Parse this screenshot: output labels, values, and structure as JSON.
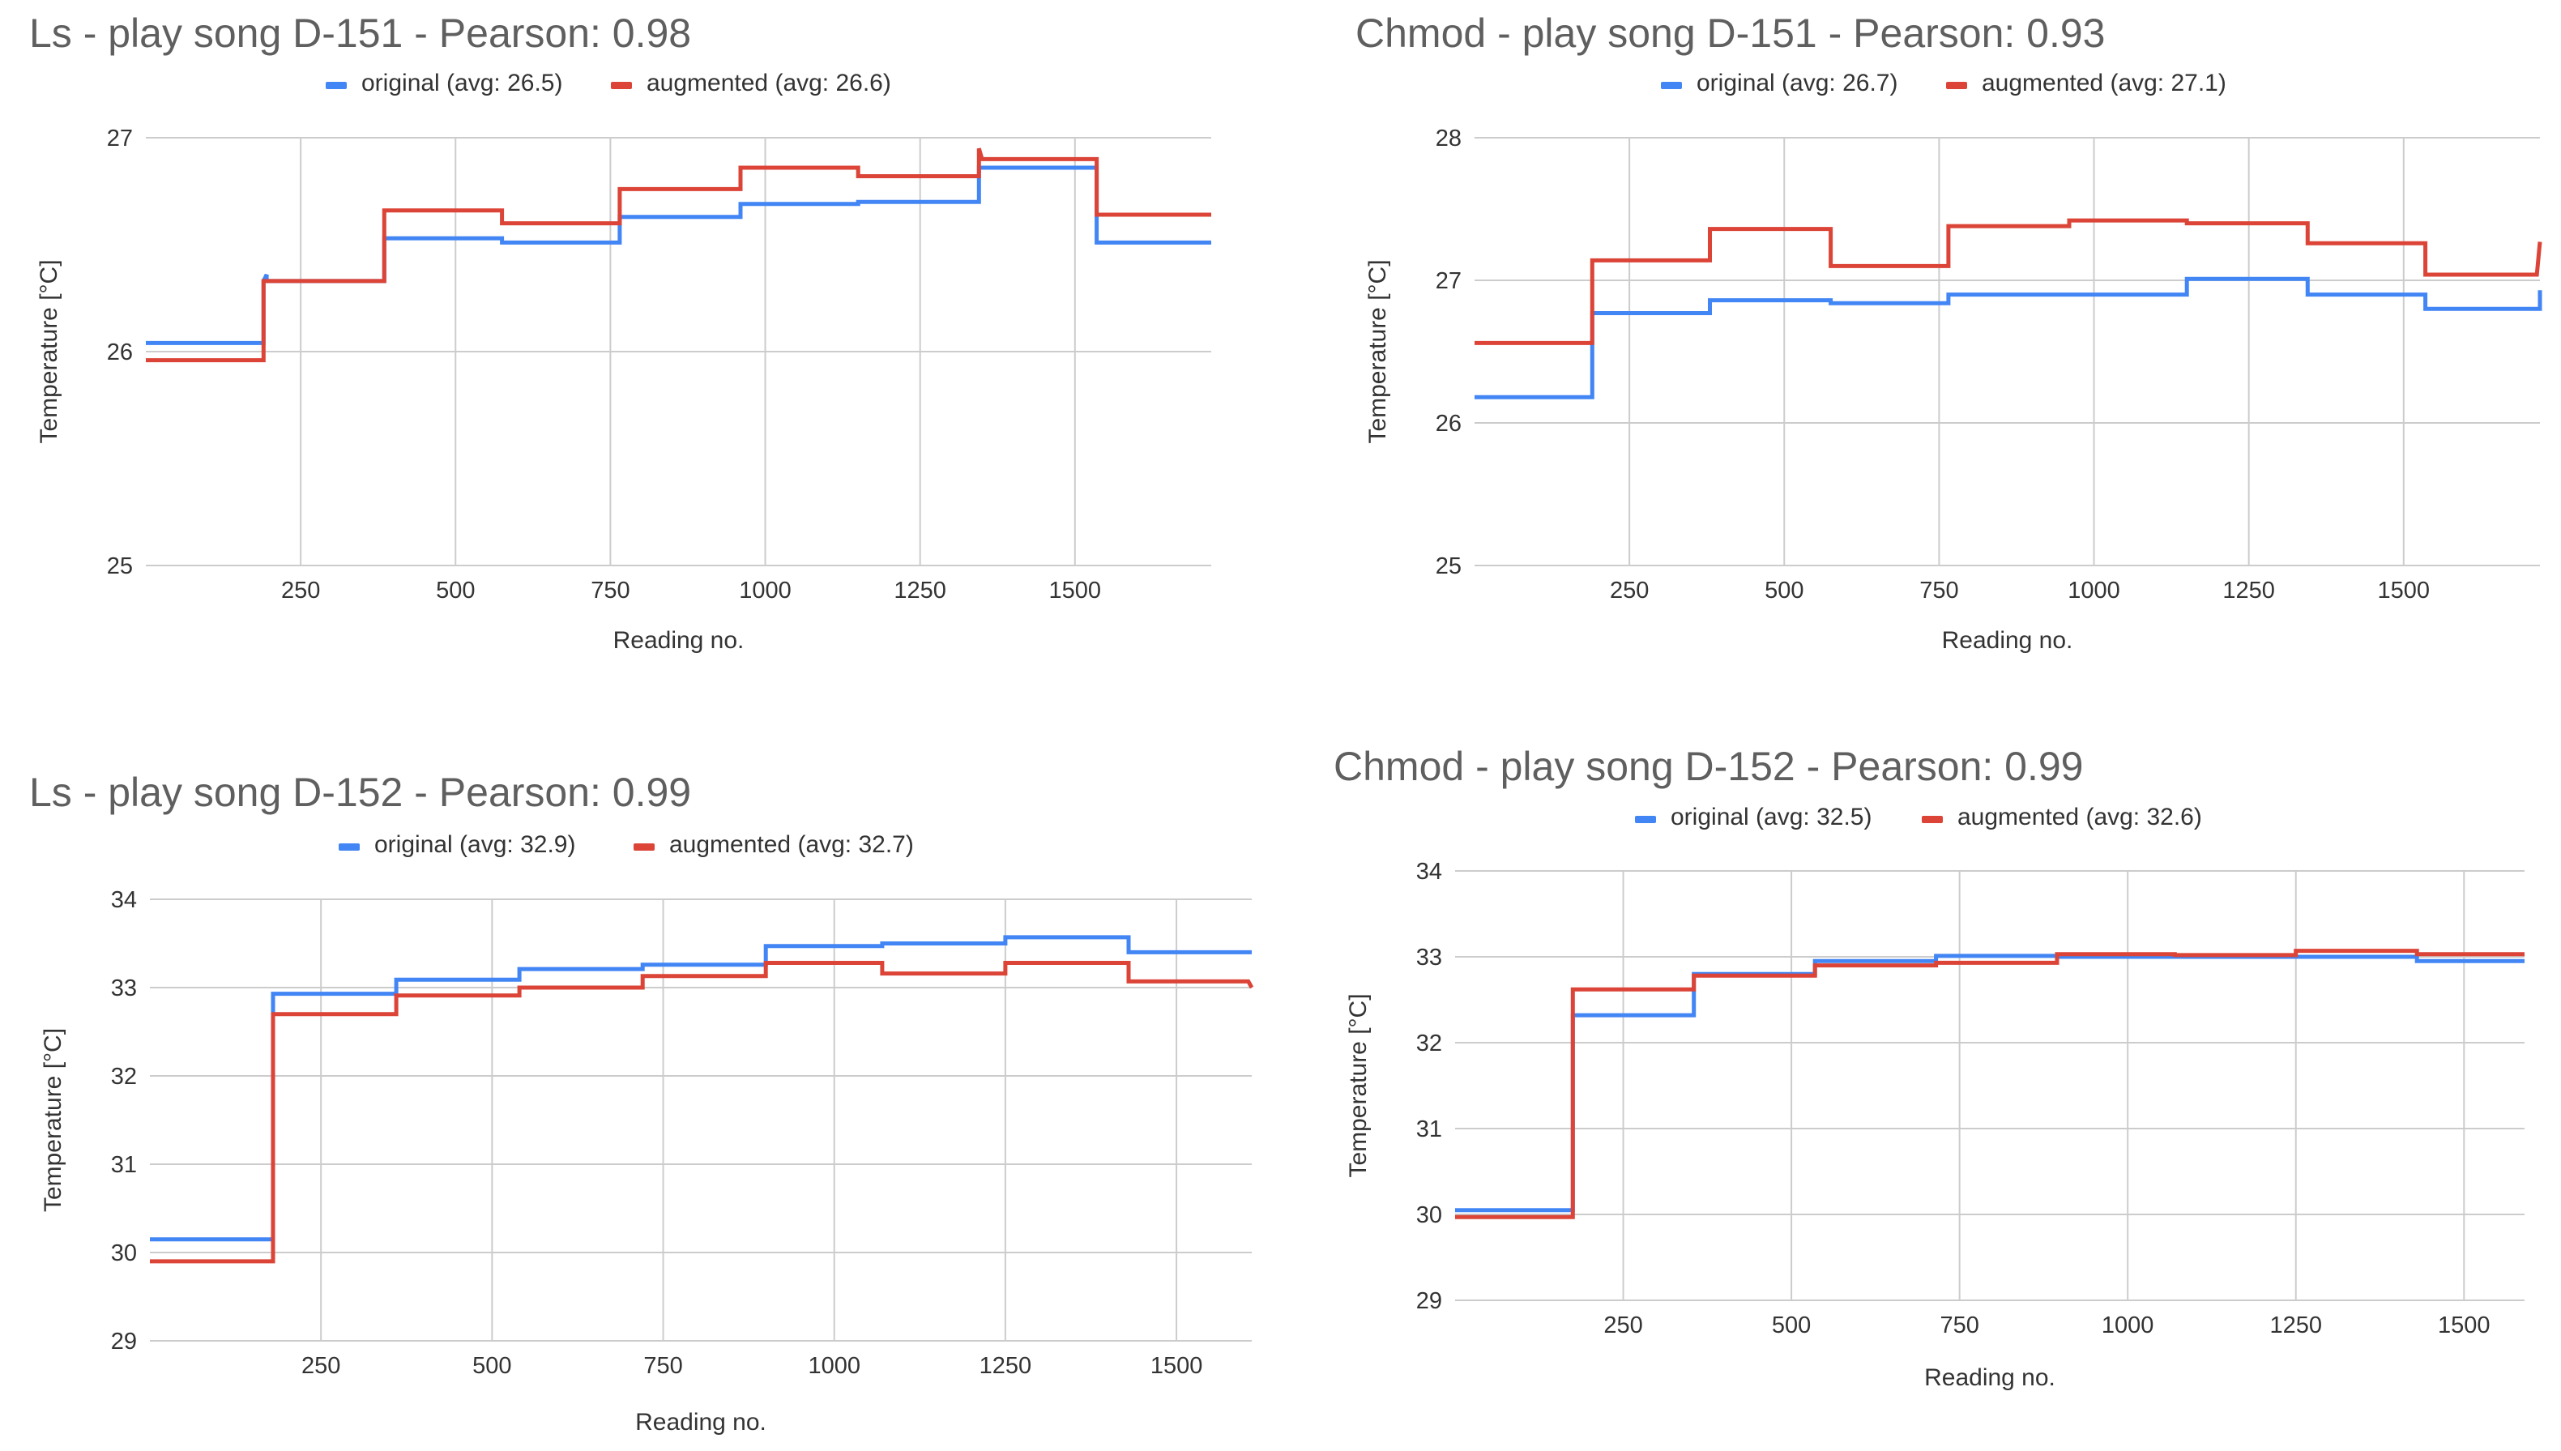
{
  "colors": {
    "original": "#4285f4",
    "augmented": "#db4437"
  },
  "chart_data": [
    {
      "type": "line",
      "title": "Ls - play song D-151 - Pearson: 0.98",
      "xlabel": "Reading no.",
      "ylabel": "Temperature [°C]",
      "xlim": [
        0,
        1720
      ],
      "ylim": [
        25,
        27
      ],
      "xticks": [
        "250",
        "500",
        "750",
        "1000",
        "1250",
        "1500"
      ],
      "yticks": [
        "25",
        "26",
        "27"
      ],
      "series": [
        {
          "name": "original (avg: 26.5)",
          "color": "#4285f4",
          "x": [
            0,
            190,
            190,
            195,
            195,
            385,
            385,
            575,
            575,
            765,
            765,
            960,
            960,
            1150,
            1150,
            1345,
            1345,
            1535,
            1535,
            1720
          ],
          "y": [
            26.04,
            26.04,
            26.33,
            26.36,
            26.33,
            26.33,
            26.53,
            26.53,
            26.51,
            26.51,
            26.63,
            26.63,
            26.69,
            26.69,
            26.7,
            26.7,
            26.86,
            26.86,
            26.51,
            26.51
          ]
        },
        {
          "name": "augmented (avg: 26.6)",
          "color": "#db4437",
          "x": [
            0,
            190,
            190,
            385,
            385,
            575,
            575,
            765,
            765,
            960,
            960,
            1150,
            1150,
            1345,
            1345,
            1350,
            1350,
            1535,
            1535,
            1720
          ],
          "y": [
            25.96,
            25.96,
            26.33,
            26.33,
            26.66,
            26.66,
            26.6,
            26.6,
            26.76,
            26.76,
            26.86,
            26.86,
            26.82,
            26.82,
            26.95,
            26.9,
            26.9,
            26.9,
            26.64,
            26.64
          ]
        }
      ]
    },
    {
      "type": "line",
      "title": "Chmod - play song D-151 - Pearson: 0.93",
      "xlabel": "Reading no.",
      "ylabel": "Temperature [°C]",
      "xlim": [
        0,
        1720
      ],
      "ylim": [
        25,
        28
      ],
      "xticks": [
        "250",
        "500",
        "750",
        "1000",
        "1250",
        "1500"
      ],
      "yticks": [
        "25",
        "26",
        "27",
        "28"
      ],
      "series": [
        {
          "name": "original (avg: 26.7)",
          "color": "#4285f4",
          "x": [
            0,
            190,
            190,
            380,
            380,
            575,
            575,
            765,
            765,
            960,
            960,
            1150,
            1150,
            1345,
            1345,
            1535,
            1535,
            1720,
            1720
          ],
          "y": [
            26.18,
            26.18,
            26.77,
            26.77,
            26.86,
            26.86,
            26.84,
            26.84,
            26.9,
            26.9,
            26.9,
            26.9,
            27.01,
            27.01,
            26.9,
            26.9,
            26.8,
            26.8,
            26.93
          ]
        },
        {
          "name": "augmented (avg: 27.1)",
          "color": "#db4437",
          "x": [
            0,
            190,
            190,
            380,
            380,
            575,
            575,
            765,
            765,
            960,
            960,
            1150,
            1150,
            1345,
            1345,
            1535,
            1535,
            1715,
            1720
          ],
          "y": [
            26.56,
            26.56,
            27.14,
            27.14,
            27.36,
            27.36,
            27.1,
            27.1,
            27.38,
            27.38,
            27.42,
            27.42,
            27.4,
            27.4,
            27.26,
            27.26,
            27.04,
            27.04,
            27.27
          ]
        }
      ]
    },
    {
      "type": "line",
      "title": "Ls - play song D-152 - Pearson: 0.99",
      "xlabel": "Reading no.",
      "ylabel": "Temperature [°C]",
      "xlim": [
        0,
        1610
      ],
      "ylim": [
        29,
        34
      ],
      "xticks": [
        "250",
        "500",
        "750",
        "1000",
        "1250",
        "1500"
      ],
      "yticks": [
        "29",
        "30",
        "31",
        "32",
        "33",
        "34"
      ],
      "series": [
        {
          "name": "original (avg: 32.9)",
          "color": "#4285f4",
          "x": [
            0,
            180,
            180,
            360,
            360,
            540,
            540,
            720,
            720,
            900,
            900,
            1070,
            1070,
            1250,
            1250,
            1430,
            1430,
            1610
          ],
          "y": [
            30.15,
            30.15,
            32.93,
            32.93,
            33.09,
            33.09,
            33.21,
            33.21,
            33.26,
            33.26,
            33.47,
            33.47,
            33.5,
            33.5,
            33.57,
            33.57,
            33.4,
            33.4
          ]
        },
        {
          "name": "augmented (avg: 32.7)",
          "color": "#db4437",
          "x": [
            0,
            180,
            180,
            360,
            360,
            540,
            540,
            720,
            720,
            900,
            900,
            1070,
            1070,
            1250,
            1250,
            1430,
            1430,
            1605,
            1610
          ],
          "y": [
            29.9,
            29.9,
            32.7,
            32.7,
            32.91,
            32.91,
            33.0,
            33.0,
            33.13,
            33.13,
            33.28,
            33.28,
            33.16,
            33.16,
            33.28,
            33.28,
            33.07,
            33.07,
            33.0
          ]
        }
      ]
    },
    {
      "type": "line",
      "title": "Chmod - play song D-152 - Pearson: 0.99",
      "xlabel": "Reading no.",
      "ylabel": "Temperature [°C]",
      "xlim": [
        0,
        1590
      ],
      "ylim": [
        29,
        34
      ],
      "xticks": [
        "250",
        "500",
        "750",
        "1000",
        "1250",
        "1500"
      ],
      "yticks": [
        "29",
        "30",
        "31",
        "32",
        "33",
        "34"
      ],
      "series": [
        {
          "name": "original (avg: 32.5)",
          "color": "#4285f4",
          "x": [
            0,
            175,
            175,
            355,
            355,
            535,
            535,
            715,
            715,
            895,
            895,
            1070,
            1070,
            1250,
            1250,
            1430,
            1430,
            1590
          ],
          "y": [
            30.05,
            30.05,
            32.32,
            32.32,
            32.8,
            32.8,
            32.95,
            32.95,
            33.01,
            33.01,
            33.0,
            33.0,
            33.0,
            33.0,
            33.0,
            33.0,
            32.95,
            32.95
          ]
        },
        {
          "name": "augmented (avg: 32.6)",
          "color": "#db4437",
          "x": [
            0,
            175,
            175,
            355,
            355,
            535,
            535,
            715,
            715,
            895,
            895,
            1070,
            1070,
            1250,
            1250,
            1430,
            1430,
            1590
          ],
          "y": [
            29.97,
            29.97,
            32.62,
            32.62,
            32.78,
            32.78,
            32.9,
            32.9,
            32.93,
            32.93,
            33.03,
            33.03,
            33.02,
            33.02,
            33.07,
            33.07,
            33.03,
            33.03
          ]
        }
      ]
    }
  ]
}
